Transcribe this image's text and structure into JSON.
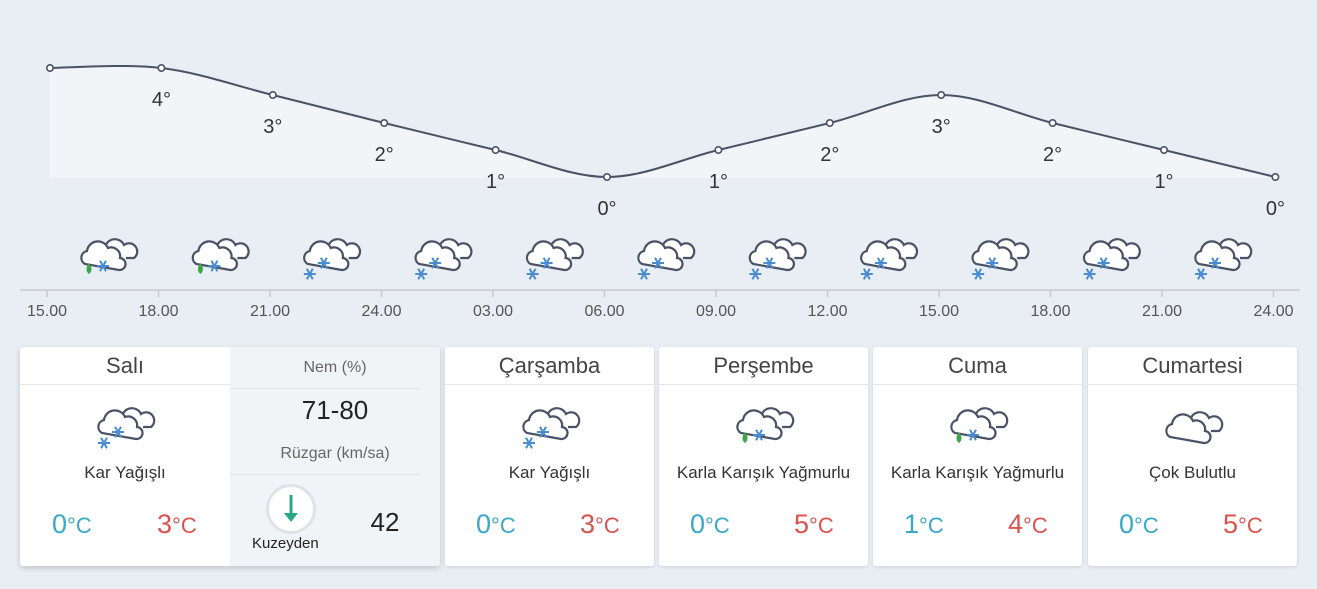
{
  "hourly": {
    "temps": [
      4,
      4,
      3,
      2,
      1,
      0,
      1,
      2,
      3,
      2,
      1,
      0
    ],
    "temp_labels": [
      "4°",
      "3°",
      "2°",
      "1°",
      "0°",
      "1°",
      "2°",
      "3°",
      "2°",
      "1°",
      "0°"
    ],
    "times": [
      "15.00",
      "18.00",
      "21.00",
      "24.00",
      "03.00",
      "06.00",
      "09.00",
      "12.00",
      "15.00",
      "18.00",
      "21.00",
      "24.00"
    ],
    "icons": [
      "sleet-icon",
      "sleet-icon",
      "snow-icon",
      "snow-icon",
      "snow-icon",
      "snow-icon",
      "snow-icon",
      "snow-icon",
      "snow-icon",
      "snow-icon",
      "snow-icon"
    ],
    "colors": {
      "line": "#4a5266",
      "area": "#f2f5f8",
      "axis": "#c7ccd1",
      "text": "#444444"
    }
  },
  "today": {
    "day": "Salı",
    "icon": "snow-icon",
    "desc": "Kar Yağışlı",
    "min": "0",
    "max": "3",
    "unit": "°C",
    "humidity_label": "Nem (%)",
    "humidity_value": "71-80",
    "wind_label": "Rüzgar (km/sa)",
    "wind_dir": "Kuzeyden",
    "wind_speed": "42"
  },
  "days": [
    {
      "day": "Çarşamba",
      "icon": "snow-icon",
      "desc": "Kar Yağışlı",
      "min": "0",
      "max": "3",
      "unit": "°C"
    },
    {
      "day": "Perşembe",
      "icon": "sleet-icon",
      "desc": "Karla Karışık Yağmurlu",
      "min": "0",
      "max": "5",
      "unit": "°C"
    },
    {
      "day": "Cuma",
      "icon": "sleet-icon",
      "desc": "Karla Karışık Yağmurlu",
      "min": "1",
      "max": "4",
      "unit": "°C"
    },
    {
      "day": "Cumartesi",
      "icon": "cloudy-icon",
      "desc": "Çok Bulutlu",
      "min": "0",
      "max": "5",
      "unit": "°C"
    }
  ],
  "colors": {
    "cold": "#39a8c6",
    "warm": "#d9534f",
    "snow": "#4a8ccf",
    "rain": "#3aa64a",
    "wind_arrow": "#2aa785"
  }
}
